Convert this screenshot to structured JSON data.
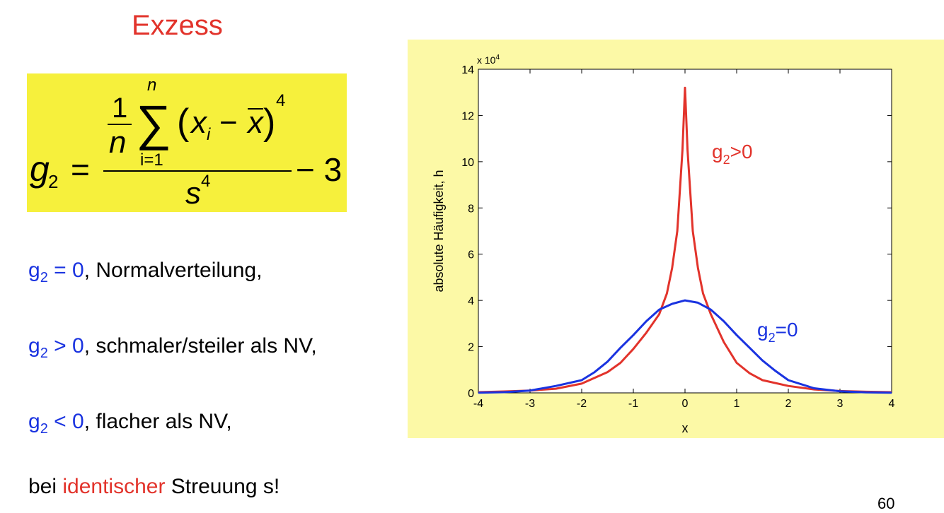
{
  "slide": {
    "title": "Exzess",
    "page_number": "60"
  },
  "formula": {
    "lhs": "g",
    "lhs_sub": "2",
    "equals": "=",
    "frac_one": "1",
    "frac_n": "n",
    "sigma": "∑",
    "sum_upper": "n",
    "sum_lower": "i=1",
    "open_paren": "(",
    "x": "x",
    "x_sub": "i",
    "minus": "−",
    "xbar": "x",
    "close_paren": ")",
    "power": "4",
    "denominator": "s",
    "den_power": "4",
    "tail": "− 3"
  },
  "bullets": [
    {
      "g": "g",
      "sub": "2",
      "rel": " = 0",
      "text": ", Normalverteilung,"
    },
    {
      "g": "g",
      "sub": "2",
      "rel": " > 0",
      "text": ", schmaler/steiler als NV,"
    },
    {
      "g": "g",
      "sub": "2",
      "rel": " < 0",
      "text": ", flacher als NV,"
    }
  ],
  "footer": {
    "prefix": "bei ",
    "highlight": "identischer",
    "suffix": " Streuung s!"
  },
  "colors": {
    "title": "#e2332b",
    "accent_blue": "#1a33e0",
    "formula_bg": "#f6f03c",
    "chart_bg": "#fcf9a6"
  },
  "chart_data": {
    "type": "line",
    "xlabel": "x",
    "ylabel": "absolute Häufigkeit, h",
    "y_multiplier": "x 10",
    "y_multiplier_exp": "4",
    "xlim": [
      -4,
      4
    ],
    "ylim": [
      0,
      14
    ],
    "x_ticks": [
      "-4",
      "-3",
      "-2",
      "-1",
      "0",
      "1",
      "2",
      "3",
      "4"
    ],
    "y_ticks": [
      "0",
      "2",
      "4",
      "6",
      "8",
      "10",
      "12",
      "14"
    ],
    "series": [
      {
        "name": "g2>0",
        "label_main": "g",
        "label_sub": "2",
        "label_rest": ">0",
        "color": "#e2332b",
        "x": [
          -4,
          -3.5,
          -3,
          -2.5,
          -2,
          -1.5,
          -1.25,
          -1,
          -0.75,
          -0.5,
          -0.35,
          -0.25,
          -0.15,
          -0.05,
          0,
          0.05,
          0.15,
          0.25,
          0.35,
          0.5,
          0.75,
          1,
          1.25,
          1.5,
          2,
          2.5,
          3,
          3.5,
          4
        ],
        "y": [
          0.03,
          0.06,
          0.1,
          0.18,
          0.4,
          0.9,
          1.3,
          1.9,
          2.6,
          3.4,
          4.3,
          5.4,
          7.0,
          10.5,
          13.2,
          10.5,
          7.0,
          5.4,
          4.3,
          3.4,
          2.2,
          1.3,
          0.85,
          0.55,
          0.3,
          0.15,
          0.08,
          0.05,
          0.03
        ]
      },
      {
        "name": "g2=0",
        "label_main": "g",
        "label_sub": "2",
        "label_rest": "=0",
        "color": "#1a33e0",
        "x": [
          -4,
          -3.5,
          -3,
          -2.5,
          -2,
          -1.75,
          -1.5,
          -1.25,
          -1,
          -0.75,
          -0.5,
          -0.25,
          0,
          0.25,
          0.5,
          0.75,
          1,
          1.25,
          1.5,
          1.75,
          2,
          2.5,
          3,
          3.5,
          4
        ],
        "y": [
          0.01,
          0.03,
          0.1,
          0.3,
          0.55,
          0.9,
          1.35,
          1.95,
          2.5,
          3.1,
          3.6,
          3.85,
          4.0,
          3.9,
          3.6,
          3.1,
          2.5,
          1.95,
          1.4,
          0.95,
          0.55,
          0.2,
          0.07,
          0.02,
          0.01
        ]
      }
    ]
  }
}
